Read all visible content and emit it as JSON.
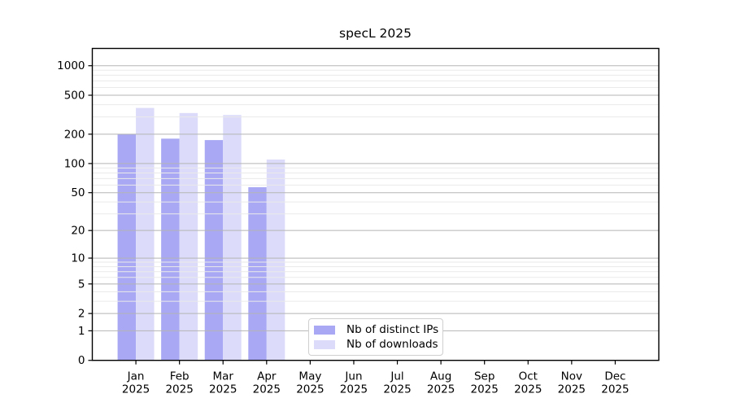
{
  "chart_data": {
    "type": "bar",
    "title": "specL 2025",
    "categories": [
      "Jan",
      "Feb",
      "Mar",
      "Apr",
      "May",
      "Jun",
      "Jul",
      "Aug",
      "Sep",
      "Oct",
      "Nov",
      "Dec"
    ],
    "x_year_label": "2025",
    "series": [
      {
        "name": "Nb of distinct IPs",
        "color": "#a8a8f4",
        "values": [
          200,
          180,
          174,
          57,
          0,
          0,
          0,
          0,
          0,
          0,
          0,
          0
        ]
      },
      {
        "name": "Nb of downloads",
        "color": "#dcdcfa",
        "values": [
          371,
          329,
          314,
          110,
          0,
          0,
          0,
          0,
          0,
          0,
          0,
          0
        ]
      }
    ],
    "y_ticks": [
      0,
      1,
      2,
      5,
      10,
      20,
      50,
      100,
      200,
      500,
      1000
    ],
    "y_minor_ticks": [
      3,
      4,
      6,
      7,
      8,
      9,
      30,
      40,
      60,
      70,
      80,
      90,
      300,
      400,
      600,
      700,
      800,
      900
    ],
    "y_max": 1500,
    "y_scale": "log10(x+1)",
    "grid": true,
    "legend_position": "lower-center",
    "colors": {
      "major_grid": "#b5b5b5",
      "minor_grid": "#eaeaea",
      "axis": "#000000",
      "background": "#ffffff"
    }
  }
}
